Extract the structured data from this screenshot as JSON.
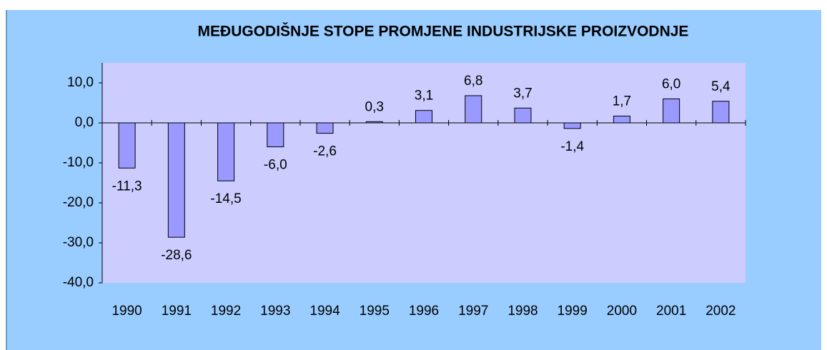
{
  "chart_data": {
    "type": "bar",
    "title": "MEĐUGODIŠNJE STOPE PROMJENE INDUSTRIJSKE PROIZVODNJE",
    "categories": [
      "1990",
      "1991",
      "1992",
      "1993",
      "1994",
      "1995",
      "1996",
      "1997",
      "1998",
      "1999",
      "2000",
      "2001",
      "2002"
    ],
    "values": [
      -11.3,
      -28.6,
      -14.5,
      -6.0,
      -2.6,
      0.3,
      3.1,
      6.8,
      3.7,
      -1.4,
      1.7,
      6.0,
      5.4
    ],
    "value_labels": [
      "-11,3",
      "-28,6",
      "-14,5",
      "-6,0",
      "-2,6",
      "0,3",
      "3,1",
      "6,8",
      "3,7",
      "-1,4",
      "1,7",
      "6,0",
      "5,4"
    ],
    "color": "#9999ff",
    "ylim": [
      -40,
      15
    ],
    "yticks": [
      {
        "value": -40,
        "label": "-40,0"
      },
      {
        "value": -30,
        "label": "-30,0"
      },
      {
        "value": -20,
        "label": "-20,0"
      },
      {
        "value": -10,
        "label": "-10,0"
      },
      {
        "value": 0,
        "label": "0,0"
      },
      {
        "value": 10,
        "label": "10,0"
      }
    ],
    "grid": false
  }
}
